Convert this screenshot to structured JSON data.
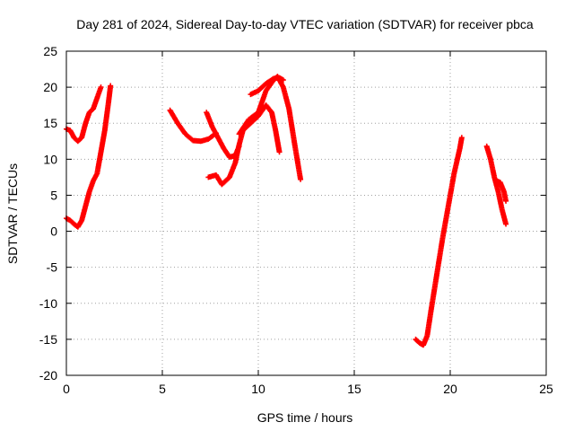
{
  "chart_data": {
    "type": "scatter",
    "title": "Day 281 of 2024, Sidereal Day-to-day VTEC variation (SDTVAR) for receiver pbca",
    "xlabel": "GPS time / hours",
    "ylabel": "SDTVAR / TECUs",
    "xlim": [
      0,
      25
    ],
    "ylim": [
      -20,
      25
    ],
    "x_ticks": [
      0,
      5,
      10,
      15,
      20,
      25
    ],
    "y_ticks": [
      -20,
      -15,
      -10,
      -5,
      0,
      5,
      10,
      15,
      20,
      25
    ],
    "grid": true,
    "legend": "none",
    "marker": "plus",
    "color": "#ff0000",
    "series": [
      {
        "x": [
          0.0,
          0.2,
          0.4,
          0.6,
          0.8,
          1.0,
          1.2,
          1.4,
          1.6,
          1.8,
          2.0,
          2.1,
          2.2,
          2.3
        ],
        "y": [
          1.8,
          1.5,
          1.0,
          0.6,
          1.5,
          3.5,
          5.5,
          7.0,
          8.0,
          11.0,
          14.0,
          16.0,
          18.0,
          20.2
        ]
      },
      {
        "x": [
          0.0,
          0.2,
          0.4,
          0.6,
          0.8,
          1.0,
          1.2,
          1.4,
          1.6,
          1.8
        ],
        "y": [
          14.2,
          14.0,
          13.0,
          12.5,
          13.0,
          15.0,
          16.5,
          17.0,
          18.5,
          20.0
        ]
      },
      {
        "x": [
          5.4,
          5.8,
          6.2,
          6.6,
          7.0,
          7.4,
          7.8
        ],
        "y": [
          16.8,
          15.0,
          13.5,
          12.6,
          12.5,
          12.8,
          13.6
        ]
      },
      {
        "x": [
          7.3,
          7.6,
          7.9,
          8.2,
          8.5,
          8.8,
          9.0
        ],
        "y": [
          16.5,
          14.5,
          13.0,
          11.5,
          10.3,
          10.5,
          11.8
        ]
      },
      {
        "x": [
          7.4,
          7.8,
          8.1,
          8.5,
          8.8,
          9.0,
          9.2,
          9.6,
          10.0,
          10.4,
          10.7,
          10.9,
          11.1
        ],
        "y": [
          7.5,
          7.8,
          6.5,
          7.5,
          9.5,
          12.0,
          14.0,
          15.0,
          16.0,
          17.5,
          16.5,
          14.0,
          11.0
        ]
      },
      {
        "x": [
          9.0,
          9.5,
          10.0,
          10.4,
          10.8,
          11.0,
          11.3,
          11.6,
          11.9,
          12.2
        ],
        "y": [
          13.5,
          15.5,
          16.5,
          19.5,
          21.0,
          21.5,
          20.0,
          17.0,
          12.0,
          7.2
        ]
      },
      {
        "x": [
          9.6,
          10.0,
          10.4,
          10.8,
          11.1,
          11.3
        ],
        "y": [
          19.0,
          19.5,
          20.5,
          21.2,
          21.3,
          21.0
        ]
      },
      {
        "x": [
          18.2,
          18.4,
          18.6,
          18.8,
          19.0,
          19.3,
          19.6,
          19.9,
          20.2,
          20.5,
          20.6
        ],
        "y": [
          -15.0,
          -15.5,
          -15.8,
          -14.5,
          -11.0,
          -6.0,
          -1.0,
          3.5,
          8.0,
          11.5,
          13.0
        ]
      },
      {
        "x": [
          21.9,
          22.1,
          22.3,
          22.5,
          22.7,
          22.9
        ],
        "y": [
          11.8,
          10.0,
          7.5,
          5.5,
          3.0,
          1.0
        ]
      },
      {
        "x": [
          22.4,
          22.6,
          22.8,
          22.9
        ],
        "y": [
          7.0,
          6.8,
          5.5,
          4.2
        ]
      }
    ]
  }
}
